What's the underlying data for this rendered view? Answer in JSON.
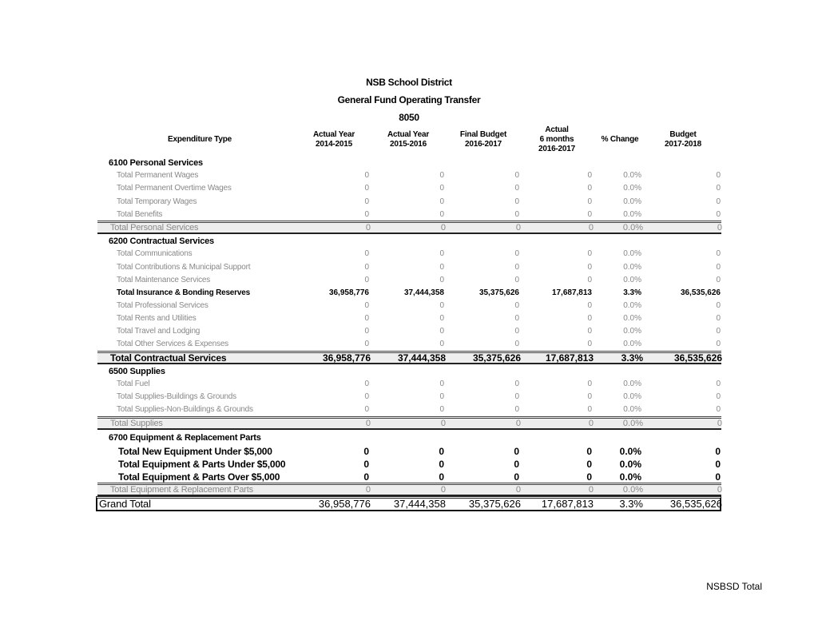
{
  "title": [
    "NSB School District",
    "General Fund Operating Transfer",
    "8050"
  ],
  "headers": {
    "type": "Expenditure Type",
    "cols": [
      [
        "Actual Year",
        "2014-2015"
      ],
      [
        "Actual Year",
        "2015-2016"
      ],
      [
        "Final Budget",
        "2016-2017"
      ],
      [
        "Actual",
        "6 months",
        "2016-2017"
      ],
      [
        "% Change"
      ],
      [
        "Budget",
        "2017-2018"
      ]
    ]
  },
  "rows": [
    {
      "kind": "section",
      "label": "6100 Personal Services",
      "values": []
    },
    {
      "kind": "item",
      "label": "Total Permanent Wages",
      "values": [
        "0",
        "0",
        "0",
        "0",
        "0.0%",
        "0"
      ]
    },
    {
      "kind": "item",
      "label": "Total Permanent Overtime Wages",
      "values": [
        "0",
        "0",
        "0",
        "0",
        "0.0%",
        "0"
      ]
    },
    {
      "kind": "item",
      "label": "Total Temporary Wages",
      "values": [
        "0",
        "0",
        "0",
        "0",
        "0.0%",
        "0"
      ]
    },
    {
      "kind": "item",
      "label": "Total Benefits",
      "values": [
        "0",
        "0",
        "0",
        "0",
        "0.0%",
        "0"
      ]
    },
    {
      "kind": "sub",
      "label": "Total Personal Services",
      "values": [
        "0",
        "0",
        "0",
        "0",
        "0.0%",
        "0"
      ]
    },
    {
      "kind": "section",
      "label": "6200 Contractual Services",
      "values": []
    },
    {
      "kind": "item",
      "label": "Total Communications",
      "values": [
        "0",
        "0",
        "0",
        "0",
        "0.0%",
        "0"
      ]
    },
    {
      "kind": "item",
      "label": "Total Contributions & Municipal Support",
      "values": [
        "0",
        "0",
        "0",
        "0",
        "0.0%",
        "0"
      ]
    },
    {
      "kind": "item",
      "label": "Total Maintenance Services",
      "values": [
        "0",
        "0",
        "0",
        "0",
        "0.0%",
        "0"
      ]
    },
    {
      "kind": "item itembold",
      "label": "Total Insurance & Bonding Reserves",
      "values": [
        "36,958,776",
        "37,444,358",
        "35,375,626",
        "17,687,813",
        "3.3%",
        "36,535,626"
      ]
    },
    {
      "kind": "item",
      "label": "Total Professional Services",
      "values": [
        "0",
        "0",
        "0",
        "0",
        "0.0%",
        "0"
      ]
    },
    {
      "kind": "item",
      "label": "Total Rents and Utilities",
      "values": [
        "0",
        "0",
        "0",
        "0",
        "0.0%",
        "0"
      ]
    },
    {
      "kind": "item",
      "label": "Total Travel and Lodging",
      "values": [
        "0",
        "0",
        "0",
        "0",
        "0.0%",
        "0"
      ]
    },
    {
      "kind": "item",
      "label": "Total Other Services & Expenses",
      "values": [
        "0",
        "0",
        "0",
        "0",
        "0.0%",
        "0"
      ]
    },
    {
      "kind": "sub subbold",
      "label": "Total Contractual Services",
      "values": [
        "36,958,776",
        "37,444,358",
        "35,375,626",
        "17,687,813",
        "3.3%",
        "36,535,626"
      ]
    },
    {
      "kind": "section",
      "label": "6500 Supplies",
      "values": []
    },
    {
      "kind": "item",
      "label": "Total Fuel",
      "values": [
        "0",
        "0",
        "0",
        "0",
        "0.0%",
        "0"
      ]
    },
    {
      "kind": "item",
      "label": "Total Supplies-Buildings & Grounds",
      "values": [
        "0",
        "0",
        "0",
        "0",
        "0.0%",
        "0"
      ]
    },
    {
      "kind": "item",
      "label": "Total Supplies-Non-Buildings & Grounds",
      "values": [
        "0",
        "0",
        "0",
        "0",
        "0.0%",
        "0"
      ]
    },
    {
      "kind": "sub",
      "label": "Total Supplies",
      "values": [
        "0",
        "0",
        "0",
        "0",
        "0.0%",
        "0"
      ]
    },
    {
      "kind": "section",
      "label": "6700 Equipment & Replacement Parts",
      "values": []
    },
    {
      "kind": "equip",
      "label": "Total New Equipment Under $5,000",
      "values": [
        "0",
        "0",
        "0",
        "0",
        "0.0%",
        "0"
      ]
    },
    {
      "kind": "equip",
      "label": "Total Equipment & Parts Under $5,000",
      "values": [
        "0",
        "0",
        "0",
        "0",
        "0.0%",
        "0"
      ]
    },
    {
      "kind": "equip",
      "label": "Total Equipment & Parts Over $5,000",
      "values": [
        "0",
        "0",
        "0",
        "0",
        "0.0%",
        "0"
      ]
    },
    {
      "kind": "sub",
      "label": "Total Equipment & Replacement Parts",
      "values": [
        "0",
        "0",
        "0",
        "0",
        "0.0%",
        "0"
      ]
    },
    {
      "kind": "grand",
      "label": "Grand Total",
      "values": [
        "36,958,776",
        "37,444,358",
        "35,375,626",
        "17,687,813",
        "3.3%",
        "36,535,626"
      ]
    }
  ],
  "footer": "NSBSD Total"
}
